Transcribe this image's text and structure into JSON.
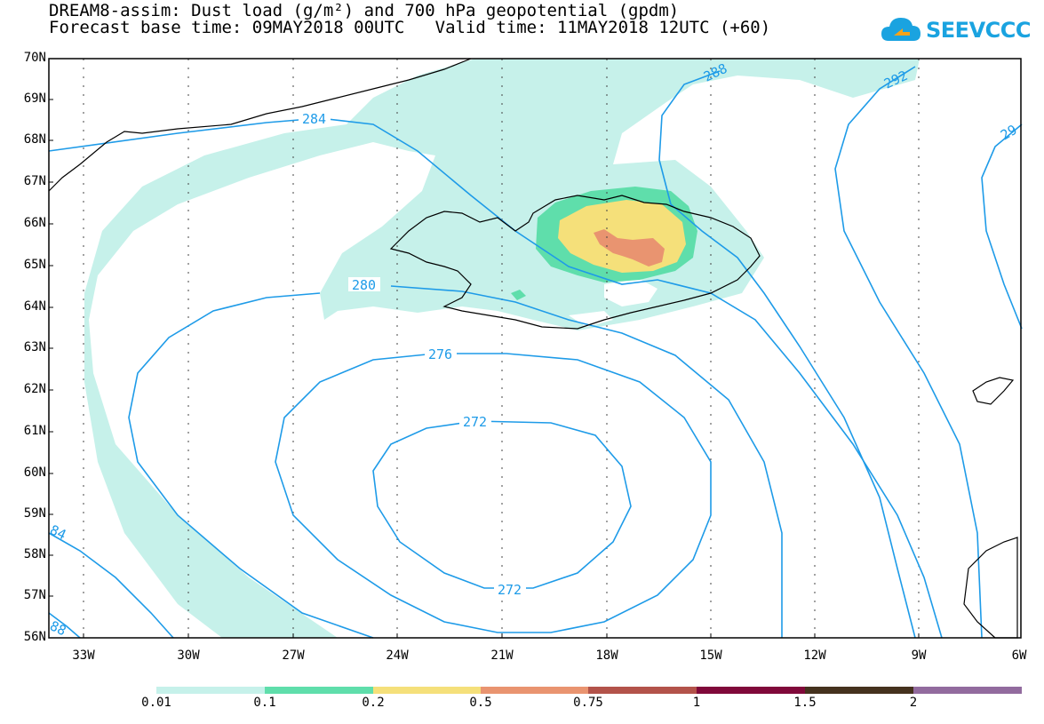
{
  "header": {
    "title_line1": "DREAM8-assim: Dust load (g/m²) and 700 hPa geopotential (gpdm)",
    "title_line2": "Forecast base time: 09MAY2018 00UTC   Valid time: 11MAY2018 12UTC (+60)"
  },
  "logo": {
    "text": "SEEVCCC",
    "icon": "cloud-icon"
  },
  "map": {
    "lat_labels": [
      "70N",
      "69N",
      "68N",
      "67N",
      "66N",
      "65N",
      "64N",
      "63N",
      "62N",
      "61N",
      "60N",
      "59N",
      "58N",
      "57N",
      "56N"
    ],
    "lon_labels": [
      "33W",
      "30W",
      "27W",
      "24W",
      "21W",
      "18W",
      "15W",
      "12W",
      "9W",
      "6W"
    ],
    "contour_labels": [
      "284",
      "280",
      "276",
      "272",
      "272",
      "288",
      "292",
      "29",
      "84",
      "88"
    ],
    "contour_color": "#1e9be8",
    "coast_color": "#000000"
  },
  "colorbar": {
    "colors": [
      "#c6f1ea",
      "#5fdeab",
      "#f5e07a",
      "#e99470",
      "#b3534a",
      "#80093a",
      "#45321e",
      "#926b9e"
    ],
    "labels": [
      "0.01",
      "0.1",
      "0.2",
      "0.5",
      "0.75",
      "1",
      "1.5",
      "2"
    ]
  }
}
